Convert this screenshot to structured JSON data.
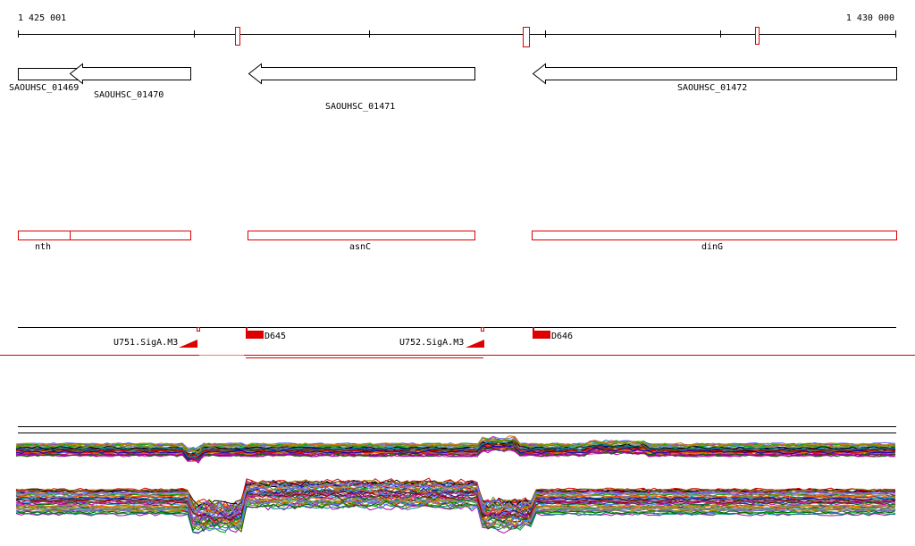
{
  "ruler": {
    "start_label": "1 425 001",
    "end_label": "1 430 000",
    "start": 1425001,
    "end": 1430000
  },
  "gene_track": {
    "genes": [
      {
        "id": "SAOUHSC_01469",
        "strand": "-",
        "start": 1425001,
        "end": 1425295
      },
      {
        "id": "SAOUHSC_01470",
        "strand": "-",
        "start": 1425295,
        "end": 1425985
      },
      {
        "id": "SAOUHSC_01471",
        "strand": "-",
        "start": 1426290,
        "end": 1427580
      },
      {
        "id": "SAOUHSC_01472",
        "strand": "-",
        "start": 1427880,
        "end": 1429995
      }
    ]
  },
  "operon_track": {
    "items": [
      {
        "name": "nth",
        "start": 1425001,
        "end": 1425295
      },
      {
        "name": "",
        "start": 1425295,
        "end": 1425985
      },
      {
        "name": "asnC",
        "start": 1426290,
        "end": 1427580
      },
      {
        "name": "dinG",
        "start": 1427880,
        "end": 1429995
      }
    ]
  },
  "regulatory_track": {
    "features": [
      {
        "label": "U751.SigA.M3",
        "kind": "promoter"
      },
      {
        "label": "D645",
        "kind": "terminator"
      },
      {
        "label": "U752.SigA.M3",
        "kind": "promoter"
      },
      {
        "label": "D646",
        "kind": "terminator"
      }
    ]
  },
  "expression_profiles": {
    "panels": 2
  },
  "colors": {
    "feature_red": "#dd0000",
    "axis_black": "#000000"
  }
}
